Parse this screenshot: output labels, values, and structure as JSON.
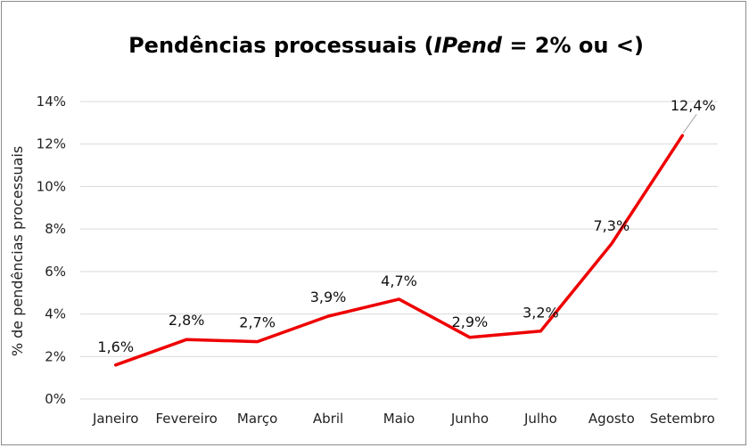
{
  "chart_data": {
    "type": "line",
    "title_main": "Pendências processuais (",
    "title_italic": "IPend",
    "title_rest": " = 2% ou <)",
    "ylabel": "% de pendências processuais",
    "xlabel": "",
    "categories": [
      "Janeiro",
      "Fevereiro",
      "Março",
      "Abril",
      "Maio",
      "Junho",
      "Julho",
      "Agosto",
      "Setembro"
    ],
    "series": [
      {
        "values": [
          1.6,
          2.8,
          2.7,
          3.9,
          4.7,
          2.9,
          3.2,
          7.3,
          12.4
        ],
        "labels": [
          "1,6%",
          "2,8%",
          "2,7%",
          "3,9%",
          "4,7%",
          "2,9%",
          "3,2%",
          "7,3%",
          "12,4%"
        ],
        "color": "#ee0000"
      }
    ],
    "ylim": [
      0,
      14
    ],
    "yticks": [
      0,
      2,
      4,
      6,
      8,
      10,
      12,
      14
    ],
    "ytick_labels": [
      "0%",
      "2%",
      "4%",
      "6%",
      "8%",
      "10%",
      "12%",
      "14%"
    ],
    "grid": true,
    "legend": "none",
    "gridColor": "#d9d9d9"
  }
}
